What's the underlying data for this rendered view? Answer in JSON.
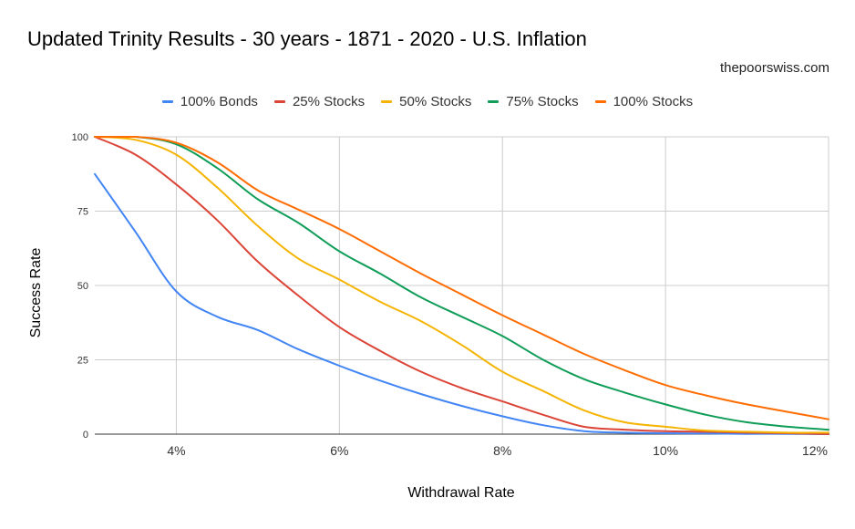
{
  "chart_data": {
    "type": "line",
    "title": "Updated Trinity Results - 30 years - 1871 - 2020 - U.S. Inflation",
    "subtitle": "thepoorswiss.com",
    "xlabel": "Withdrawal Rate",
    "ylabel": "Success Rate",
    "xlim": [
      3,
      12
    ],
    "ylim": [
      0,
      100
    ],
    "x_ticks": [
      {
        "value": 4,
        "label": "4%"
      },
      {
        "value": 6,
        "label": "6%"
      },
      {
        "value": 8,
        "label": "8%"
      },
      {
        "value": 10,
        "label": "10%"
      },
      {
        "value": 12,
        "label": "12%"
      }
    ],
    "y_ticks": [
      {
        "value": 0,
        "label": "0"
      },
      {
        "value": 25,
        "label": "25"
      },
      {
        "value": 50,
        "label": "50"
      },
      {
        "value": 75,
        "label": "75"
      },
      {
        "value": 100,
        "label": "100"
      }
    ],
    "legend_position": "top",
    "grid": true,
    "x": [
      3,
      3.5,
      4,
      4.5,
      5,
      5.5,
      6,
      6.5,
      7,
      7.5,
      8,
      8.5,
      9,
      9.5,
      10,
      10.5,
      11,
      11.5,
      12
    ],
    "series": [
      {
        "name": "100% Bonds",
        "color": "#4285f4",
        "values": [
          87.5,
          68,
          48,
          39.5,
          35,
          28.5,
          23,
          18,
          13.5,
          9.5,
          6,
          3,
          1,
          0.5,
          0.3,
          0.2,
          0.1,
          0.1,
          0
        ]
      },
      {
        "name": "25% Stocks",
        "color": "#db4437",
        "values": [
          100,
          94,
          84,
          72,
          58,
          46.5,
          36,
          28,
          21,
          15.5,
          11,
          6.5,
          2.5,
          1.5,
          1,
          0.8,
          0.5,
          0.3,
          0
        ]
      },
      {
        "name": "50% Stocks",
        "color": "#f4b400",
        "values": [
          100,
          99,
          94,
          83,
          70,
          59,
          52,
          44.5,
          38,
          30,
          21,
          14.5,
          8,
          4,
          2.5,
          1.2,
          0.8,
          0.5,
          0.5
        ]
      },
      {
        "name": "75% Stocks",
        "color": "#0f9d58",
        "values": [
          100,
          100,
          97.5,
          89.5,
          79,
          71,
          61.5,
          54,
          46,
          39.5,
          33,
          25,
          18.5,
          14,
          10,
          6.5,
          4,
          2.5,
          1.5
        ]
      },
      {
        "name": "100% Stocks",
        "color": "#ff6d01",
        "values": [
          100,
          100,
          98,
          91.5,
          82,
          75.5,
          69,
          61.5,
          54,
          47,
          40,
          33.5,
          27,
          21.5,
          16.5,
          13,
          10,
          7.5,
          5
        ]
      }
    ]
  }
}
